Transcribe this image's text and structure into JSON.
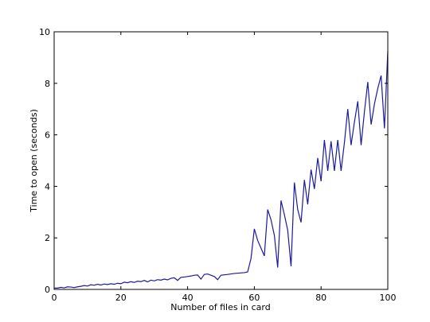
{
  "chart_data": {
    "type": "line",
    "xlabel": "Number of files in card",
    "ylabel": "Time to open (seconds)",
    "xlim": [
      0,
      100
    ],
    "ylim": [
      0,
      10
    ],
    "xticks": [
      0,
      20,
      40,
      60,
      80,
      100
    ],
    "yticks": [
      0,
      2,
      4,
      6,
      8,
      10
    ],
    "x": [
      0,
      1,
      2,
      3,
      4,
      5,
      6,
      7,
      8,
      9,
      10,
      11,
      12,
      13,
      14,
      15,
      16,
      17,
      18,
      19,
      20,
      21,
      22,
      23,
      24,
      25,
      26,
      27,
      28,
      29,
      30,
      31,
      32,
      33,
      34,
      35,
      36,
      37,
      38,
      39,
      40,
      41,
      42,
      43,
      44,
      45,
      46,
      47,
      48,
      49,
      50,
      52,
      54,
      57,
      58,
      59,
      60,
      61,
      62,
      63,
      64,
      65,
      66,
      67,
      68,
      69,
      70,
      71,
      72,
      73,
      74,
      75,
      76,
      77,
      78,
      79,
      80,
      81,
      82,
      83,
      84,
      85,
      86,
      87,
      88,
      89,
      90,
      91,
      92,
      93,
      94,
      95,
      96,
      97,
      98,
      99,
      100
    ],
    "series": [
      {
        "color": "#1a1aa0",
        "values": [
          0.05,
          0.05,
          0.08,
          0.06,
          0.1,
          0.09,
          0.07,
          0.1,
          0.12,
          0.15,
          0.13,
          0.18,
          0.16,
          0.2,
          0.17,
          0.21,
          0.19,
          0.22,
          0.2,
          0.24,
          0.22,
          0.28,
          0.26,
          0.3,
          0.27,
          0.32,
          0.3,
          0.35,
          0.29,
          0.36,
          0.33,
          0.38,
          0.36,
          0.4,
          0.37,
          0.43,
          0.45,
          0.35,
          0.47,
          0.48,
          0.5,
          0.52,
          0.55,
          0.56,
          0.4,
          0.58,
          0.6,
          0.55,
          0.5,
          0.38,
          0.55,
          0.58,
          0.62,
          0.65,
          0.68,
          1.2,
          2.35,
          1.9,
          1.6,
          1.3,
          3.1,
          2.7,
          2.1,
          0.85,
          3.45,
          2.9,
          2.3,
          0.9,
          4.15,
          3.1,
          2.6,
          4.25,
          3.3,
          4.65,
          3.9,
          5.1,
          4.2,
          5.8,
          4.6,
          5.75,
          4.6,
          5.8,
          4.6,
          5.7,
          7.0,
          5.6,
          6.5,
          7.3,
          5.6,
          6.9,
          8.05,
          6.4,
          7.2,
          7.8,
          8.3,
          6.25,
          9.25
        ]
      }
    ]
  }
}
